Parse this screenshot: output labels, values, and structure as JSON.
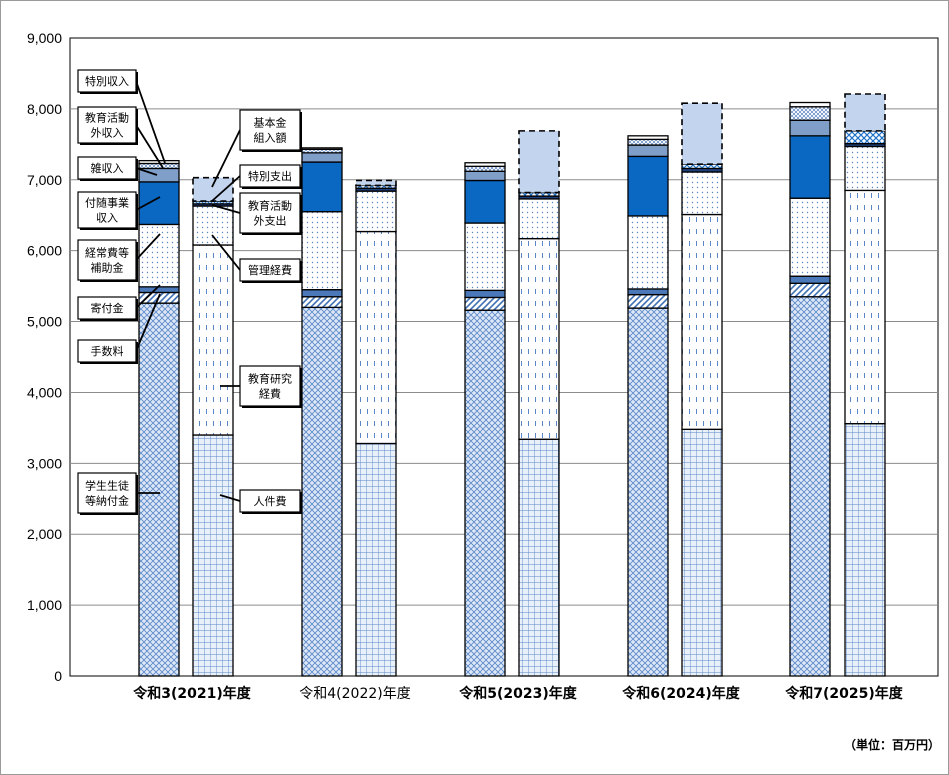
{
  "chart_data": {
    "type": "bar",
    "stacked": true,
    "ylim": [
      0,
      9000
    ],
    "yticks": [
      "0",
      "1,000",
      "2,000",
      "3,000",
      "4,000",
      "5,000",
      "6,000",
      "7,000",
      "8,000",
      "9,000"
    ],
    "grid": true,
    "unit_label": "（単位：百万円）",
    "categories": [
      {
        "label": "令和3(2021)年度",
        "bold": true
      },
      {
        "label": "令和4(2022)年度",
        "bold": false
      },
      {
        "label": "令和5(2023)年度",
        "bold": true
      },
      {
        "label": "令和6(2024)年度",
        "bold": true
      },
      {
        "label": "令和7(2025)年度",
        "bold": true
      }
    ],
    "income_series": [
      {
        "name": "学生生徒等納付金",
        "values": [
          5260,
          5200,
          5160,
          5190,
          5350
        ]
      },
      {
        "name": "手数料",
        "values": [
          150,
          150,
          180,
          190,
          190
        ]
      },
      {
        "name": "寄付金",
        "values": [
          80,
          100,
          100,
          80,
          100
        ]
      },
      {
        "name": "経常費等補助金",
        "values": [
          880,
          1100,
          950,
          1030,
          1100
        ]
      },
      {
        "name": "付随事業収入",
        "values": [
          600,
          700,
          600,
          840,
          880
        ]
      },
      {
        "name": "雑収入",
        "values": [
          190,
          130,
          130,
          160,
          220
        ]
      },
      {
        "name": "教育活動外収入",
        "values": [
          70,
          50,
          70,
          80,
          190
        ]
      },
      {
        "name": "特別収入",
        "values": [
          40,
          20,
          50,
          50,
          60
        ]
      }
    ],
    "expense_series": [
      {
        "name": "人件費",
        "values": [
          3400,
          3280,
          3340,
          3480,
          3560
        ]
      },
      {
        "name": "教育研究経費",
        "values": [
          2680,
          2990,
          2830,
          3030,
          3290
        ]
      },
      {
        "name": "管理経費",
        "values": [
          550,
          570,
          560,
          600,
          620
        ]
      },
      {
        "name": "教育活動外支出",
        "values": [
          30,
          40,
          40,
          50,
          40
        ]
      },
      {
        "name": "特別支出",
        "values": [
          40,
          40,
          50,
          60,
          180
        ]
      },
      {
        "name": "基本金組入額",
        "values": [
          330,
          70,
          870,
          860,
          520
        ]
      }
    ],
    "callouts": [
      {
        "text": [
          "特別収入"
        ]
      },
      {
        "text": [
          "教育活動",
          "外収入"
        ]
      },
      {
        "text": [
          "雑収入"
        ]
      },
      {
        "text": [
          "付随事業",
          "収入"
        ]
      },
      {
        "text": [
          "経常費等",
          "補助金"
        ]
      },
      {
        "text": [
          "寄付金"
        ]
      },
      {
        "text": [
          "手数料"
        ]
      },
      {
        "text": [
          "学生生徒",
          "等納付金"
        ]
      },
      {
        "text": [
          "基本金",
          "組入額"
        ]
      },
      {
        "text": [
          "特別支出"
        ]
      },
      {
        "text": [
          "教育活動",
          "外支出"
        ]
      },
      {
        "text": [
          "管理経費"
        ]
      },
      {
        "text": [
          "教育研究",
          "経費"
        ]
      },
      {
        "text": [
          "人件費"
        ]
      }
    ]
  }
}
